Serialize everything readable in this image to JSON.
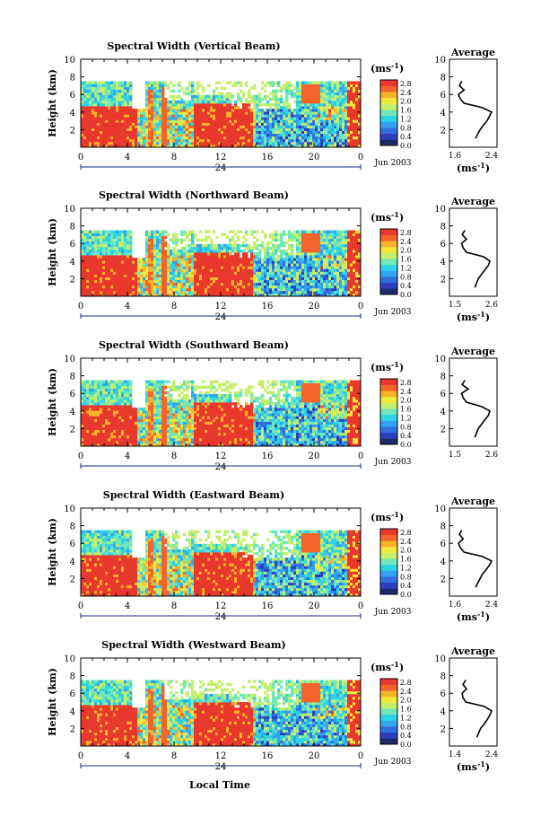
{
  "x_axis_label": "Local Time",
  "date_label": "Jun 2003",
  "day_label": "24",
  "unit_label": "(ms",
  "unit_exp": "-1",
  "unit_close": ")",
  "height_label": "Height (km)",
  "average_title": "Average",
  "colors": {
    "colormap": [
      "#1f2a6b",
      "#2b3fbd",
      "#2f6fe0",
      "#33a4f0",
      "#2fd3e6",
      "#6fe7b8",
      "#c4ef6a",
      "#f2e83c",
      "#f7b22e",
      "#f2642a",
      "#e8392c"
    ]
  },
  "chart_data": [
    {
      "type": "heatmap",
      "title": "Spectral Width (Vertical Beam)",
      "xlabel": "",
      "ylabel": "Height (km)",
      "x_ticks": [
        "0",
        "4",
        "8",
        "12",
        "16",
        "20",
        "0"
      ],
      "xlim": [
        0,
        24
      ],
      "ylim": [
        0,
        10
      ],
      "y_ticks": [
        "2",
        "4",
        "6",
        "8",
        "10"
      ],
      "colorbar": {
        "ticks": [
          "2.8",
          "2.4",
          "2.0",
          "1.6",
          "1.2",
          "0.8",
          "0.4",
          "0.0"
        ],
        "range": [
          0,
          2.8
        ]
      },
      "profile": {
        "title": "Average",
        "xlabel": "(ms-1)",
        "x_ticks": [
          "1.6",
          "2.4"
        ],
        "xlim": [
          1.6,
          2.4
        ],
        "heights": [
          1,
          1.5,
          2,
          2.5,
          3,
          3.5,
          4,
          4.5,
          5,
          5.5,
          6,
          6.5,
          7,
          7.5
        ],
        "values": [
          2.05,
          2.1,
          2.15,
          2.22,
          2.3,
          2.35,
          2.4,
          2.2,
          1.8,
          1.72,
          1.68,
          1.8,
          1.7,
          1.75
        ]
      }
    },
    {
      "type": "heatmap",
      "title": "Spectral Width (Northward Beam)",
      "xlabel": "",
      "ylabel": "Height (km)",
      "x_ticks": [
        "0",
        "4",
        "8",
        "12",
        "16",
        "20",
        "0"
      ],
      "xlim": [
        0,
        24
      ],
      "ylim": [
        0,
        10
      ],
      "y_ticks": [
        "2",
        "4",
        "6",
        "8",
        "10"
      ],
      "colorbar": {
        "ticks": [
          "2.8",
          "2.4",
          "2.0",
          "1.6",
          "1.2",
          "0.8",
          "0.4",
          "0.0"
        ],
        "range": [
          0,
          2.8
        ]
      },
      "profile": {
        "title": "Average",
        "xlabel": "(ms-1)",
        "x_ticks": [
          "1.5",
          "2.6"
        ],
        "xlim": [
          1.5,
          2.6
        ],
        "heights": [
          1,
          1.5,
          2,
          2.5,
          3,
          3.5,
          4,
          4.5,
          5,
          5.5,
          6,
          6.5,
          7,
          7.5
        ],
        "values": [
          2.1,
          2.15,
          2.2,
          2.3,
          2.4,
          2.5,
          2.55,
          2.35,
          1.85,
          1.75,
          1.7,
          1.85,
          1.72,
          1.8
        ]
      }
    },
    {
      "type": "heatmap",
      "title": "Spectral Width (Southward Beam)",
      "xlabel": "",
      "ylabel": "Height (km)",
      "x_ticks": [
        "0",
        "4",
        "8",
        "12",
        "16",
        "20",
        "0"
      ],
      "xlim": [
        0,
        24
      ],
      "ylim": [
        0,
        10
      ],
      "y_ticks": [
        "2",
        "4",
        "6",
        "8",
        "10"
      ],
      "colorbar": {
        "ticks": [
          "2.8",
          "2.4",
          "2.0",
          "1.6",
          "1.2",
          "0.8",
          "0.4",
          "0.0"
        ],
        "range": [
          0,
          2.8
        ]
      },
      "profile": {
        "title": "Average",
        "xlabel": "",
        "x_ticks": [
          "1.5",
          "2.6"
        ],
        "xlim": [
          1.5,
          2.6
        ],
        "heights": [
          1,
          1.5,
          2,
          2.5,
          3,
          3.5,
          4,
          4.5,
          5,
          5.5,
          6,
          6.5,
          7,
          7.5
        ],
        "values": [
          2.1,
          2.15,
          2.2,
          2.3,
          2.4,
          2.5,
          2.55,
          2.3,
          1.85,
          1.75,
          1.7,
          1.9,
          1.72,
          1.8
        ]
      }
    },
    {
      "type": "heatmap",
      "title": "Spectral Width (Eastward Beam)",
      "xlabel": "",
      "ylabel": "Height (km)",
      "x_ticks": [
        "0",
        "4",
        "8",
        "12",
        "16",
        "20",
        "0"
      ],
      "xlim": [
        0,
        24
      ],
      "ylim": [
        0,
        10
      ],
      "y_ticks": [
        "2",
        "4",
        "6",
        "8",
        "10"
      ],
      "colorbar": {
        "ticks": [
          "2.8",
          "2.4",
          "2.0",
          "1.6",
          "1.2",
          "0.8",
          "0.4",
          "0.0"
        ],
        "range": [
          0,
          2.8
        ]
      },
      "profile": {
        "title": "Average",
        "xlabel": "(ms-1)",
        "x_ticks": [
          "1.6",
          "2.4"
        ],
        "xlim": [
          1.6,
          2.4
        ],
        "heights": [
          1,
          1.5,
          2,
          2.5,
          3,
          3.5,
          4,
          4.5,
          5,
          5.5,
          6,
          6.5,
          7,
          7.5
        ],
        "values": [
          2.05,
          2.1,
          2.15,
          2.2,
          2.28,
          2.35,
          2.4,
          2.2,
          1.8,
          1.72,
          1.68,
          1.78,
          1.7,
          1.75
        ]
      }
    },
    {
      "type": "heatmap",
      "title": "Spectral Width (Westward Beam)",
      "xlabel": "Local Time",
      "ylabel": "Height (km)",
      "x_ticks": [
        "0",
        "4",
        "8",
        "12",
        "16",
        "20",
        "0"
      ],
      "xlim": [
        0,
        24
      ],
      "ylim": [
        0,
        10
      ],
      "y_ticks": [
        "2",
        "4",
        "6",
        "8",
        "10"
      ],
      "colorbar": {
        "ticks": [
          "2.8",
          "2.4",
          "2.0",
          "1.6",
          "1.2",
          "0.8",
          "0.4",
          "0.0"
        ],
        "range": [
          0,
          2.8
        ]
      },
      "profile": {
        "title": "Average",
        "xlabel": "(ms-1)",
        "x_ticks": [
          "1.4",
          "2.4"
        ],
        "xlim": [
          1.4,
          2.4
        ],
        "heights": [
          1,
          1.5,
          2,
          2.5,
          3,
          3.5,
          4,
          4.5,
          5,
          5.5,
          6,
          6.5,
          7,
          7.5
        ],
        "values": [
          2.0,
          2.05,
          2.1,
          2.2,
          2.28,
          2.35,
          2.4,
          2.2,
          1.7,
          1.62,
          1.6,
          1.72,
          1.62,
          1.7
        ]
      }
    }
  ]
}
